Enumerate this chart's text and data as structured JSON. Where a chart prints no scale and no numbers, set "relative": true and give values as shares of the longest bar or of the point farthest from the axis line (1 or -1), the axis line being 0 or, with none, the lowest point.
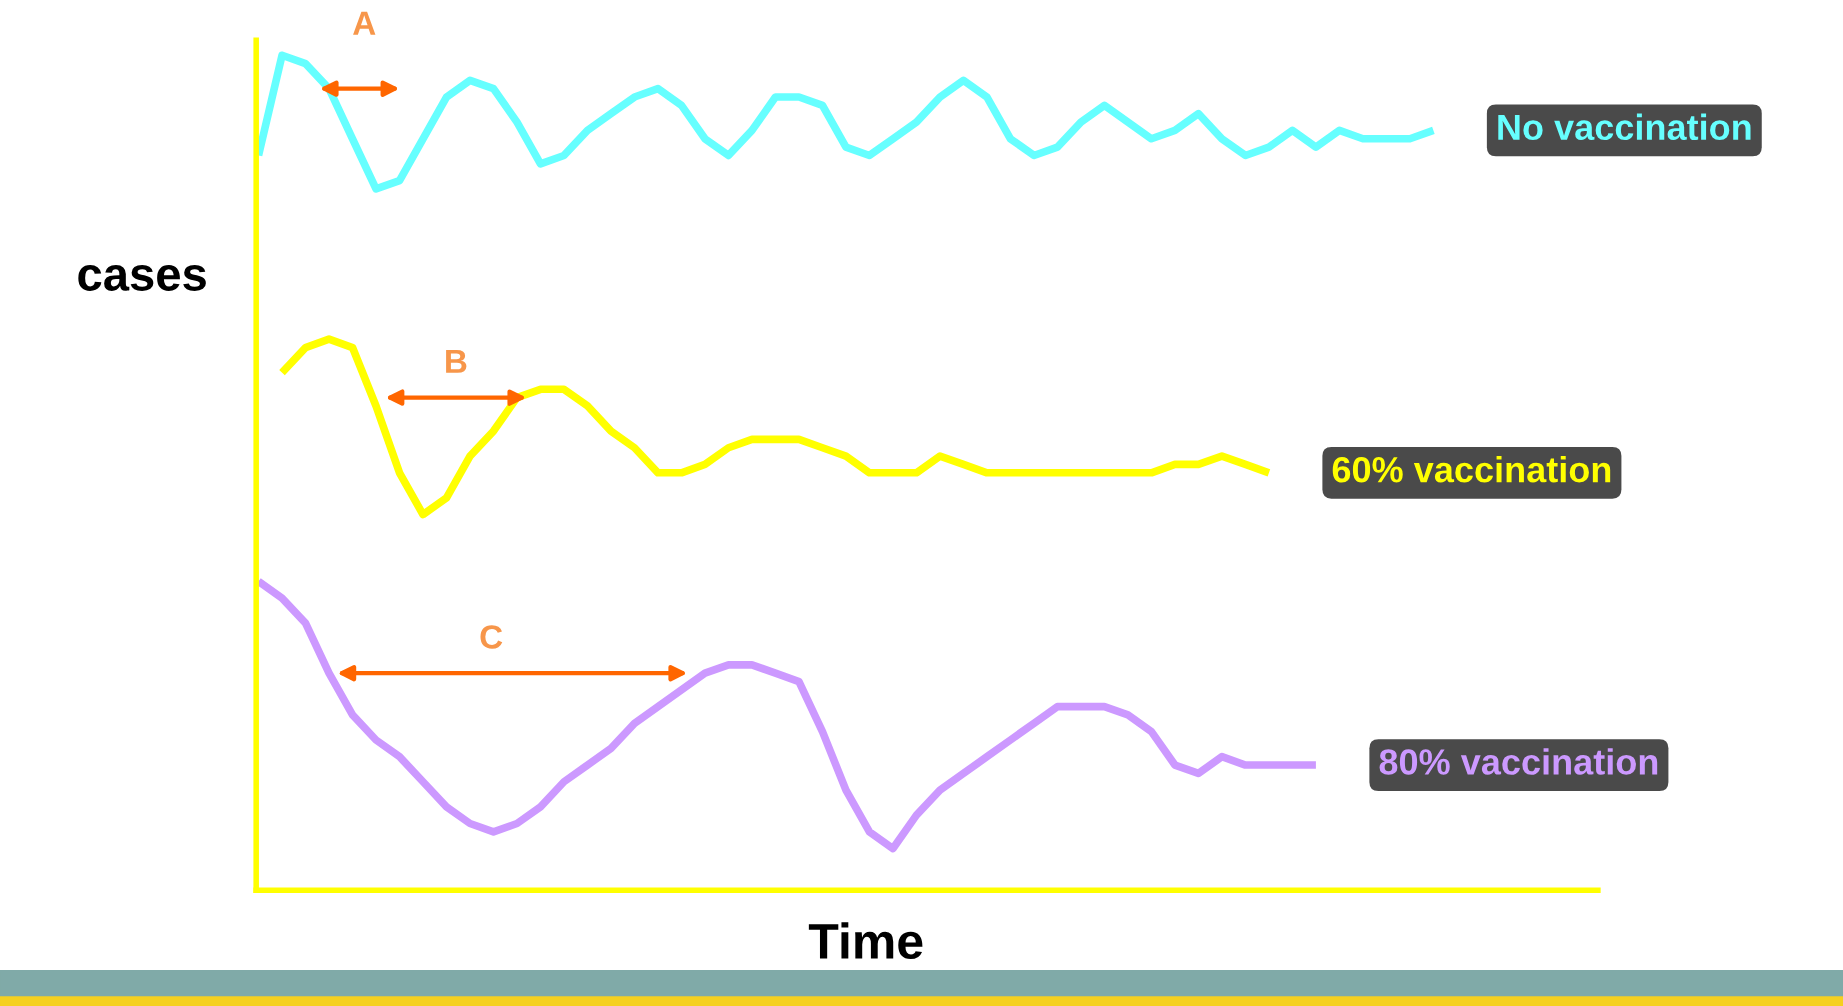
{
  "chart_data": {
    "type": "line",
    "relative": true,
    "xlabel": "Time",
    "ylabel": "cases",
    "annotations": [
      "A",
      "B",
      "C"
    ],
    "categories": [
      null,
      null,
      null,
      null,
      null,
      null,
      null,
      null,
      null,
      null,
      null,
      null,
      null,
      null,
      null,
      null,
      null,
      null,
      null,
      null,
      null,
      null,
      null,
      null,
      null,
      null,
      null,
      null,
      null,
      null,
      null,
      null,
      null,
      null,
      null,
      null,
      null,
      null,
      null,
      null,
      null,
      null,
      null,
      null,
      null,
      null,
      null,
      null,
      null,
      null,
      null,
      null,
      null,
      null,
      null,
      null,
      null,
      null
    ],
    "series": [
      {
        "name": "No vaccination",
        "color": "#66ffff",
        "values": [
          0.88,
          1.0,
          0.99,
          0.96,
          0.9,
          0.84,
          0.85,
          0.9,
          0.95,
          0.97,
          0.96,
          0.92,
          0.87,
          0.88,
          0.91,
          0.93,
          0.95,
          0.96,
          0.94,
          0.9,
          0.88,
          0.91,
          0.95,
          0.95,
          0.94,
          0.89,
          0.88,
          0.9,
          0.92,
          0.95,
          0.97,
          0.95,
          0.9,
          0.88,
          0.89,
          0.92,
          0.94,
          0.92,
          0.9,
          0.91,
          0.93,
          0.9,
          0.88,
          0.89,
          0.91,
          0.89,
          0.91,
          0.9,
          0.9,
          0.9,
          0.91,
          null,
          null,
          null,
          null,
          null,
          null,
          null
        ]
      },
      {
        "name": "60% vaccination",
        "color": "#ffff00",
        "values": [
          null,
          0.62,
          0.65,
          0.66,
          0.65,
          0.58,
          0.5,
          0.45,
          0.47,
          0.52,
          0.55,
          0.59,
          0.6,
          0.6,
          0.58,
          0.55,
          0.53,
          0.5,
          0.5,
          0.51,
          0.53,
          0.54,
          0.54,
          0.54,
          0.53,
          0.52,
          0.5,
          0.5,
          0.5,
          0.52,
          0.51,
          0.5,
          0.5,
          0.5,
          0.5,
          0.5,
          0.5,
          0.5,
          0.5,
          0.51,
          0.51,
          0.52,
          0.51,
          0.5,
          null,
          null,
          null,
          null,
          null,
          null,
          null,
          null,
          null,
          null,
          null,
          null,
          null,
          null
        ]
      },
      {
        "name": "80% vaccination",
        "color": "#cc99ff",
        "values": [
          0.37,
          0.35,
          0.32,
          0.26,
          0.21,
          0.18,
          0.16,
          0.13,
          0.1,
          0.08,
          0.07,
          0.08,
          0.1,
          0.13,
          0.15,
          0.17,
          0.2,
          0.22,
          0.24,
          0.26,
          0.27,
          0.27,
          0.26,
          0.25,
          0.19,
          0.12,
          0.07,
          0.05,
          0.09,
          0.12,
          0.14,
          0.16,
          0.18,
          0.2,
          0.22,
          0.22,
          0.22,
          0.21,
          0.19,
          0.15,
          0.14,
          0.16,
          0.15,
          0.15,
          0.15,
          0.15,
          null,
          null,
          null,
          null,
          null,
          null,
          null,
          null,
          null,
          null,
          null,
          null
        ]
      }
    ]
  }
}
